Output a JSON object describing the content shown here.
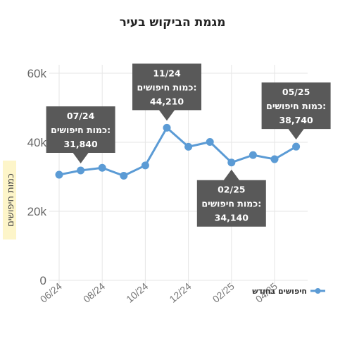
{
  "chart_data": {
    "type": "line",
    "title": "מגמת הביקוש בעיר",
    "ylabel": "כמות חיפושים",
    "xlabel": "",
    "ylim": [
      0,
      60000
    ],
    "yticks": [
      0,
      20000,
      40000,
      60000
    ],
    "ytick_labels": [
      "0",
      "20k",
      "40k",
      "60k"
    ],
    "x": [
      "06/24",
      "07/24",
      "08/24",
      "09/24",
      "10/24",
      "11/24",
      "12/24",
      "01/25",
      "02/25",
      "03/25",
      "04/25",
      "05/25"
    ],
    "xtick_labels": [
      "06/24",
      "08/24",
      "10/24",
      "12/24",
      "02/25",
      "04/25"
    ],
    "grid": true,
    "legend_position": "right",
    "series": [
      {
        "name": "חיפושים בחודש",
        "color": "#5b9bd5",
        "values": [
          30600,
          31840,
          32600,
          30300,
          33300,
          44210,
          38700,
          40100,
          34140,
          36300,
          35100,
          38740
        ]
      }
    ],
    "callouts": [
      {
        "index": 1,
        "label_period": "07/24",
        "label_metric": "כמות חיפושים:",
        "label_value": "31,840"
      },
      {
        "index": 5,
        "label_period": "11/24",
        "label_metric": "כמות חיפושים:",
        "label_value": "44,210"
      },
      {
        "index": 8,
        "label_period": "02/25",
        "label_metric": "כמות חיפושים:",
        "label_value": "34,140"
      },
      {
        "index": 11,
        "label_period": "05/25",
        "label_metric": "כמות חיפושים:",
        "label_value": "38,740"
      }
    ],
    "callout_color": "#595959",
    "grid_color": "#e6e6e6",
    "ylabel_background": "#fdf5c9"
  }
}
